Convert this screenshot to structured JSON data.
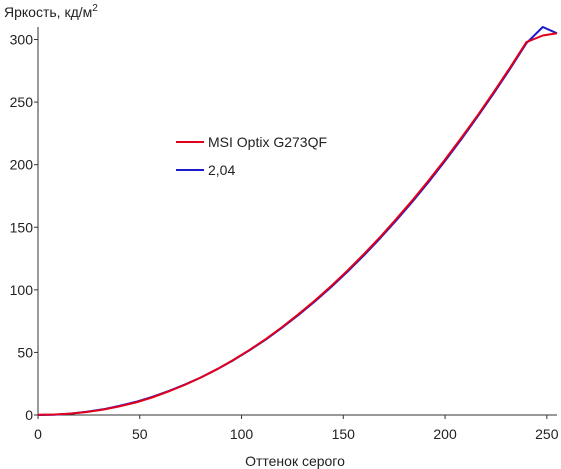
{
  "chart_data": {
    "type": "line",
    "ylabel": "Яркость, кд/м",
    "ylabel_sup": "2",
    "xlabel": "Оттенок серого",
    "xlim": [
      0,
      255
    ],
    "ylim": [
      0,
      310
    ],
    "x_ticks": [
      0,
      50,
      100,
      150,
      200,
      250
    ],
    "y_ticks": [
      0,
      50,
      100,
      150,
      200,
      250,
      300
    ],
    "grid": false,
    "legend_position": "center-left",
    "series": [
      {
        "name": "MSI Optix G273QF",
        "color": "#e0001b",
        "x": [
          0,
          8,
          16,
          24,
          32,
          40,
          48,
          56,
          64,
          72,
          80,
          88,
          96,
          104,
          112,
          120,
          128,
          136,
          144,
          152,
          160,
          168,
          176,
          184,
          192,
          200,
          208,
          216,
          224,
          232,
          240,
          248,
          255
        ],
        "y": [
          0.2,
          0.4,
          1.1,
          2.4,
          4.3,
          6.9,
          10.0,
          14.0,
          18.7,
          24.0,
          30.0,
          36.6,
          44.0,
          52.1,
          60.8,
          70.3,
          80.5,
          91.4,
          103.0,
          115.3,
          128.3,
          142.0,
          156.5,
          171.6,
          187.5,
          204.1,
          221.4,
          239.4,
          258.2,
          277.7,
          297.9,
          303.2,
          305
        ]
      },
      {
        "name": "2,04",
        "color": "#1a1acc",
        "x": [
          0,
          8,
          16,
          24,
          32,
          40,
          48,
          56,
          64,
          72,
          80,
          88,
          96,
          104,
          112,
          120,
          128,
          136,
          144,
          152,
          160,
          168,
          176,
          184,
          192,
          200,
          208,
          216,
          224,
          232,
          240,
          248,
          255
        ],
        "y": [
          0,
          0.27,
          1.12,
          2.55,
          4.59,
          7.24,
          10.5,
          14.4,
          19.0,
          24.2,
          30.0,
          36.6,
          43.8,
          51.8,
          60.4,
          69.8,
          79.9,
          90.7,
          102.2,
          114.4,
          127.3,
          141.0,
          155.4,
          170.5,
          186.4,
          203.0,
          220.3,
          238.4,
          257.2,
          276.8,
          297.1,
          318.2,
          305
        ]
      }
    ]
  }
}
